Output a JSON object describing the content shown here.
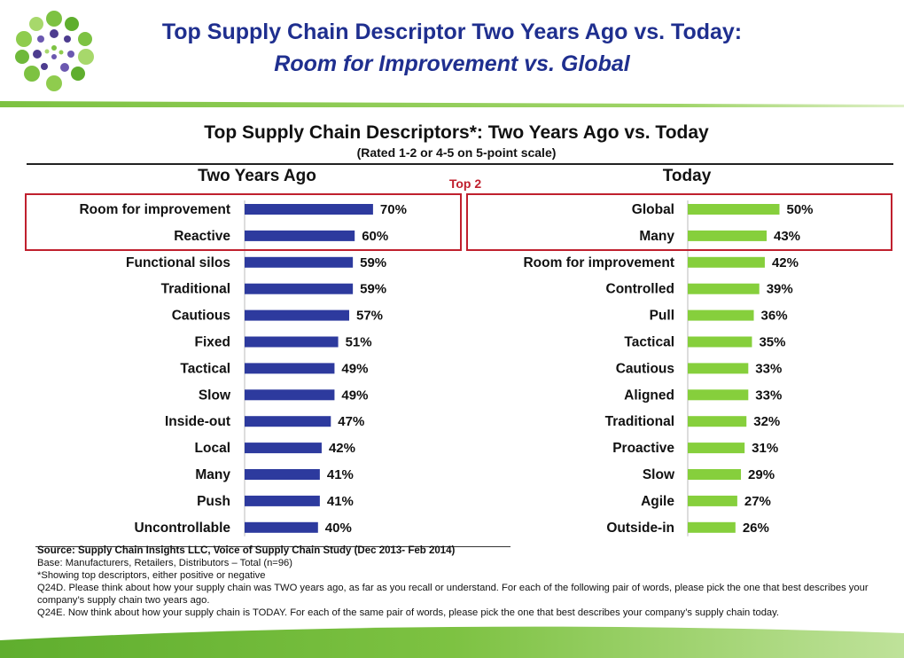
{
  "header": {
    "title_line1": "Top Supply Chain Descriptor Two Years Ago vs. Today:",
    "title_line2": "Room for Improvement vs. Global"
  },
  "colors": {
    "title_blue": "#1f2f8f",
    "bar_blue": "#2d3a9e",
    "bar_green": "#86cf3c",
    "highlight_red": "#c0202e",
    "accent_green": "#7dc242"
  },
  "highlight_label": "Top 2",
  "chart_data": [
    {
      "type": "bar",
      "orientation": "horizontal",
      "title": "Top Supply Chain Descriptors*:  Two Years Ago vs. Today",
      "subtitle": "(Rated 1-2 or 4-5 on 5-point scale)",
      "panel_title": "Two Years Ago",
      "categories": [
        "Room for improvement",
        "Reactive",
        "Functional silos",
        "Traditional",
        "Cautious",
        "Fixed",
        "Tactical",
        "Slow",
        "Inside-out",
        "Local",
        "Many",
        "Push",
        "Uncontrollable"
      ],
      "values": [
        70,
        60,
        59,
        59,
        57,
        51,
        49,
        49,
        47,
        42,
        41,
        41,
        40
      ],
      "value_labels": [
        "70%",
        "60%",
        "59%",
        "59%",
        "57%",
        "51%",
        "49%",
        "49%",
        "47%",
        "42%",
        "41%",
        "41%",
        "40%"
      ],
      "unit": "%",
      "highlighted_top": 2
    },
    {
      "type": "bar",
      "orientation": "horizontal",
      "panel_title": "Today",
      "categories": [
        "Global",
        "Many",
        "Room for improvement",
        "Controlled",
        "Pull",
        "Tactical",
        "Cautious",
        "Aligned",
        "Traditional",
        "Proactive",
        "Slow",
        "Agile",
        "Outside-in"
      ],
      "values": [
        50,
        43,
        42,
        39,
        36,
        35,
        33,
        33,
        32,
        31,
        29,
        27,
        26
      ],
      "value_labels": [
        "50%",
        "43%",
        "42%",
        "39%",
        "36%",
        "35%",
        "33%",
        "33%",
        "32%",
        "31%",
        "29%",
        "27%",
        "26%"
      ],
      "unit": "%",
      "highlighted_top": 2
    }
  ],
  "notes": {
    "source": "Source:  Supply Chain Insights LLC, Voice of Supply Chain Study (Dec 2013- Feb 2014)",
    "base": "Base:  Manufacturers, Retailers, Distributors – Total (n=96)",
    "asterisk": "*Showing top descriptors, either positive or negative",
    "q24d": "Q24D. Please think about how your supply chain was TWO years ago, as far as you recall or understand. For each of the following pair of words, please pick the one that best describes your company’s supply chain two years ago.",
    "q24e": "Q24E. Now think about how your supply chain is TODAY. For each of the same pair of words, please pick the one that best describes your company’s supply chain today."
  }
}
